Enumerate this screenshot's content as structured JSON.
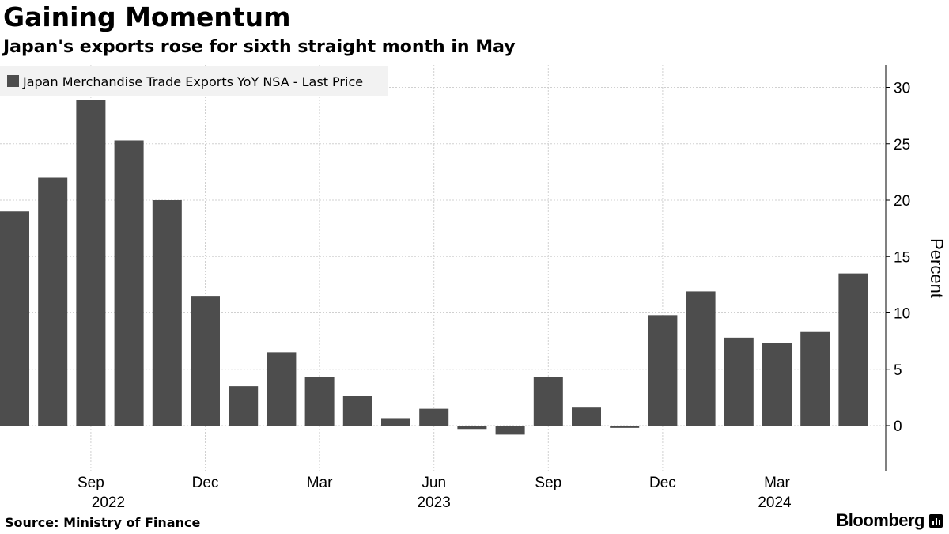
{
  "header": {
    "title": "Gaining Momentum",
    "subtitle": "Japan's exports rose for sixth straight month in May"
  },
  "footer": {
    "source": "Source: Ministry of Finance",
    "brand": "Bloomberg"
  },
  "colors": {
    "bar": "#4d4d4d",
    "grid": "#d0d0d0",
    "legend_bg": "#f2f2f2"
  },
  "chart_data": {
    "type": "bar",
    "legend": "Japan Merchandise Trade Exports YoY NSA - Last Price",
    "legend_placement": "top-left",
    "ylabel": "Percent",
    "y_axis_side": "right",
    "ylim": [
      -4,
      32
    ],
    "yticks": [
      0,
      5,
      10,
      15,
      20,
      25,
      30
    ],
    "grid": true,
    "categories": [
      "2022-07",
      "2022-08",
      "2022-09",
      "2022-10",
      "2022-11",
      "2022-12",
      "2023-01",
      "2023-02",
      "2023-03",
      "2023-04",
      "2023-05",
      "2023-06",
      "2023-07",
      "2023-08",
      "2023-09",
      "2023-10",
      "2023-11",
      "2023-12",
      "2024-01",
      "2024-02",
      "2024-03",
      "2024-04",
      "2024-05"
    ],
    "values": [
      19.0,
      22.0,
      28.9,
      25.3,
      20.0,
      11.5,
      3.5,
      6.5,
      4.3,
      2.6,
      0.6,
      1.5,
      -0.3,
      -0.8,
      4.3,
      1.6,
      -0.2,
      9.8,
      11.9,
      7.8,
      7.3,
      8.3,
      13.5
    ],
    "x_ticks": [
      {
        "category": "2022-09",
        "label": "Sep",
        "year": "2022"
      },
      {
        "category": "2022-12",
        "label": "Dec",
        "year": ""
      },
      {
        "category": "2023-03",
        "label": "Mar",
        "year": ""
      },
      {
        "category": "2023-06",
        "label": "Jun",
        "year": "2023"
      },
      {
        "category": "2023-09",
        "label": "Sep",
        "year": ""
      },
      {
        "category": "2023-12",
        "label": "Dec",
        "year": ""
      },
      {
        "category": "2024-03",
        "label": "Mar",
        "year": "2024"
      }
    ]
  }
}
